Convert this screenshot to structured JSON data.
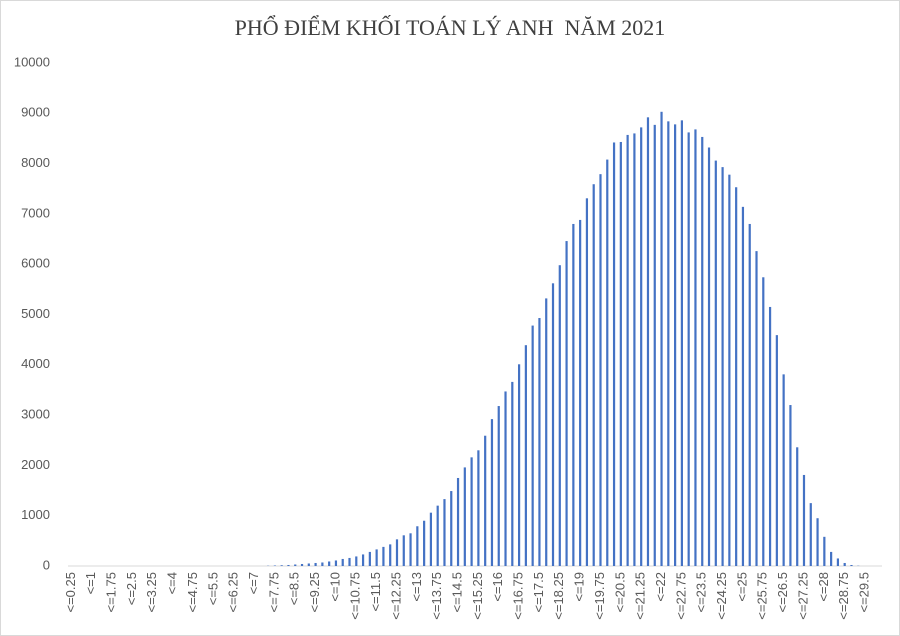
{
  "chart_data": {
    "type": "bar",
    "title": "PHỔ ĐIỂM KHỐI TOÁN LÝ ANH  NĂM 2021",
    "categories": [
      "<=0.25",
      null,
      null,
      "<=1",
      null,
      null,
      "<=1.75",
      null,
      null,
      "<=2.5",
      null,
      null,
      "<=3.25",
      null,
      null,
      "<=4",
      null,
      null,
      "<=4.75",
      null,
      null,
      "<=5.5",
      null,
      null,
      "<=6.25",
      null,
      null,
      "<=7",
      null,
      null,
      "<=7.75",
      null,
      null,
      "<=8.5",
      null,
      null,
      "<=9.25",
      null,
      null,
      "<=10",
      null,
      null,
      "<=10.75",
      null,
      null,
      "<=11.5",
      null,
      null,
      "<=12.25",
      null,
      null,
      "<=13",
      null,
      null,
      "<=13.75",
      null,
      null,
      "<=14.5",
      null,
      null,
      "<=15.25",
      null,
      null,
      "<=16",
      null,
      null,
      "<=16.75",
      null,
      null,
      "<=17.5",
      null,
      null,
      "<=18.25",
      null,
      null,
      "<=19",
      null,
      null,
      "<=19.75",
      null,
      null,
      "<=20.5",
      null,
      null,
      "<=21.25",
      null,
      null,
      "<=22",
      null,
      null,
      "<=22.75",
      null,
      null,
      "<=23.5",
      null,
      null,
      "<=24.25",
      null,
      null,
      "<=25",
      null,
      null,
      "<=25.75",
      null,
      null,
      "<=26.5",
      null,
      null,
      "<=27.25",
      null,
      null,
      "<=28",
      null,
      null,
      "<=28.75",
      null,
      null,
      "<=29.5",
      null,
      null
    ],
    "values": [
      0,
      0,
      0,
      0,
      0,
      0,
      0,
      0,
      0,
      0,
      0,
      0,
      0,
      0,
      0,
      0,
      0,
      0,
      0,
      0,
      0,
      0,
      0,
      0,
      0,
      0,
      0,
      0,
      0,
      5,
      10,
      15,
      20,
      30,
      40,
      50,
      60,
      70,
      90,
      110,
      140,
      160,
      190,
      230,
      280,
      330,
      380,
      430,
      530,
      610,
      650,
      790,
      900,
      1060,
      1200,
      1330,
      1490,
      1750,
      1960,
      2160,
      2300,
      2590,
      2920,
      3180,
      3470,
      3660,
      4010,
      4390,
      4780,
      4930,
      5320,
      5620,
      5980,
      6460,
      6800,
      6880,
      7310,
      7590,
      7790,
      8080,
      8420,
      8430,
      8570,
      8600,
      8720,
      8920,
      8770,
      9030,
      8840,
      8780,
      8860,
      8620,
      8680,
      8530,
      8320,
      8060,
      7930,
      7780,
      7530,
      7140,
      6800,
      6260,
      5740,
      5150,
      4590,
      3810,
      3200,
      2360,
      1810,
      1250,
      950,
      580,
      280,
      150,
      60,
      20,
      5,
      0,
      0,
      0
    ],
    "color": "#4472c4",
    "ylim": [
      0,
      10000
    ],
    "yticks": [
      0,
      1000,
      2000,
      3000,
      4000,
      5000,
      6000,
      7000,
      8000,
      9000,
      10000
    ],
    "grid": false
  }
}
